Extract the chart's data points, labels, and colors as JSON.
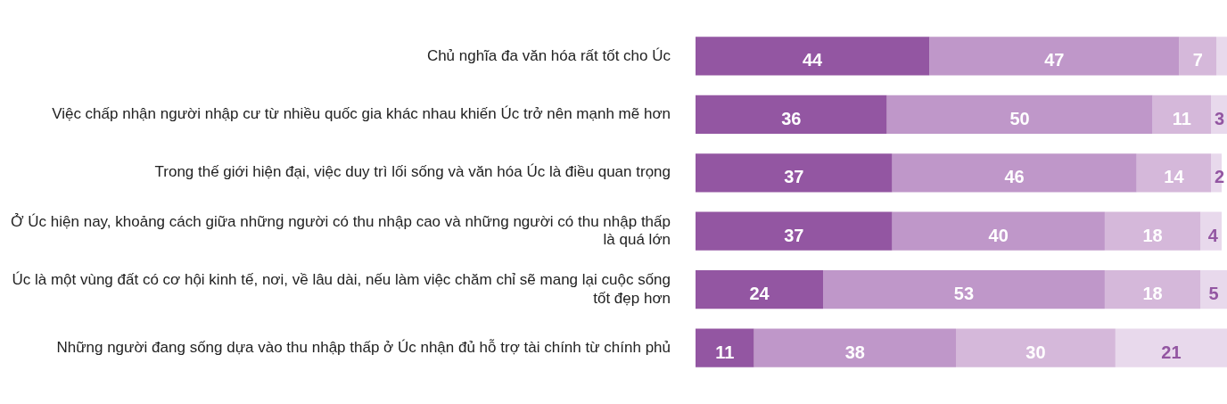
{
  "chart_data": {
    "type": "bar",
    "orientation": "horizontal",
    "stacked": true,
    "tick_labels": "y",
    "grid": false,
    "legend": false,
    "categories": [
      "Chủ nghĩa đa văn hóa rất tốt cho Úc",
      "Việc chấp nhận người nhập cư từ nhiều quốc gia khác nhau khiến Úc trở nên mạnh mẽ hơn",
      "Trong thế giới hiện đại, việc duy trì lối sống và văn hóa Úc là điều quan trọng",
      "Ở Úc hiện nay, khoảng cách giữa những người có thu nhập cao và những người có thu nhập thấp là quá lớn",
      "Úc là một vùng đất có cơ hội kinh tế, nơi, về lâu dài, nếu làm việc chăm chỉ sẽ mang lại cuộc sống tốt đẹp hơn",
      "Những người đang sống dựa vào thu nhập thấp ở Úc nhận đủ hỗ trợ tài chính từ chính phủ"
    ],
    "series": [
      {
        "color": "#9356a2",
        "values": [
          44,
          36,
          37,
          37,
          24,
          11
        ],
        "value_labels": [
          "44",
          "36",
          "37",
          "37",
          "24",
          "11"
        ]
      },
      {
        "color": "#bf97c9",
        "values": [
          47,
          50,
          46,
          40,
          53,
          38
        ],
        "value_labels": [
          "47",
          "50",
          "46",
          "40",
          "53",
          "38"
        ]
      },
      {
        "color": "#d5b8da",
        "values": [
          7,
          11,
          14,
          18,
          18,
          30
        ],
        "value_labels": [
          "7",
          "11",
          "14",
          "18",
          "18",
          "30"
        ]
      },
      {
        "color": "#e8d9ec",
        "values": [
          2,
          3,
          2,
          4,
          5,
          21
        ],
        "value_labels": [
          null,
          "3",
          "2",
          "4",
          "5",
          "21"
        ]
      }
    ]
  }
}
